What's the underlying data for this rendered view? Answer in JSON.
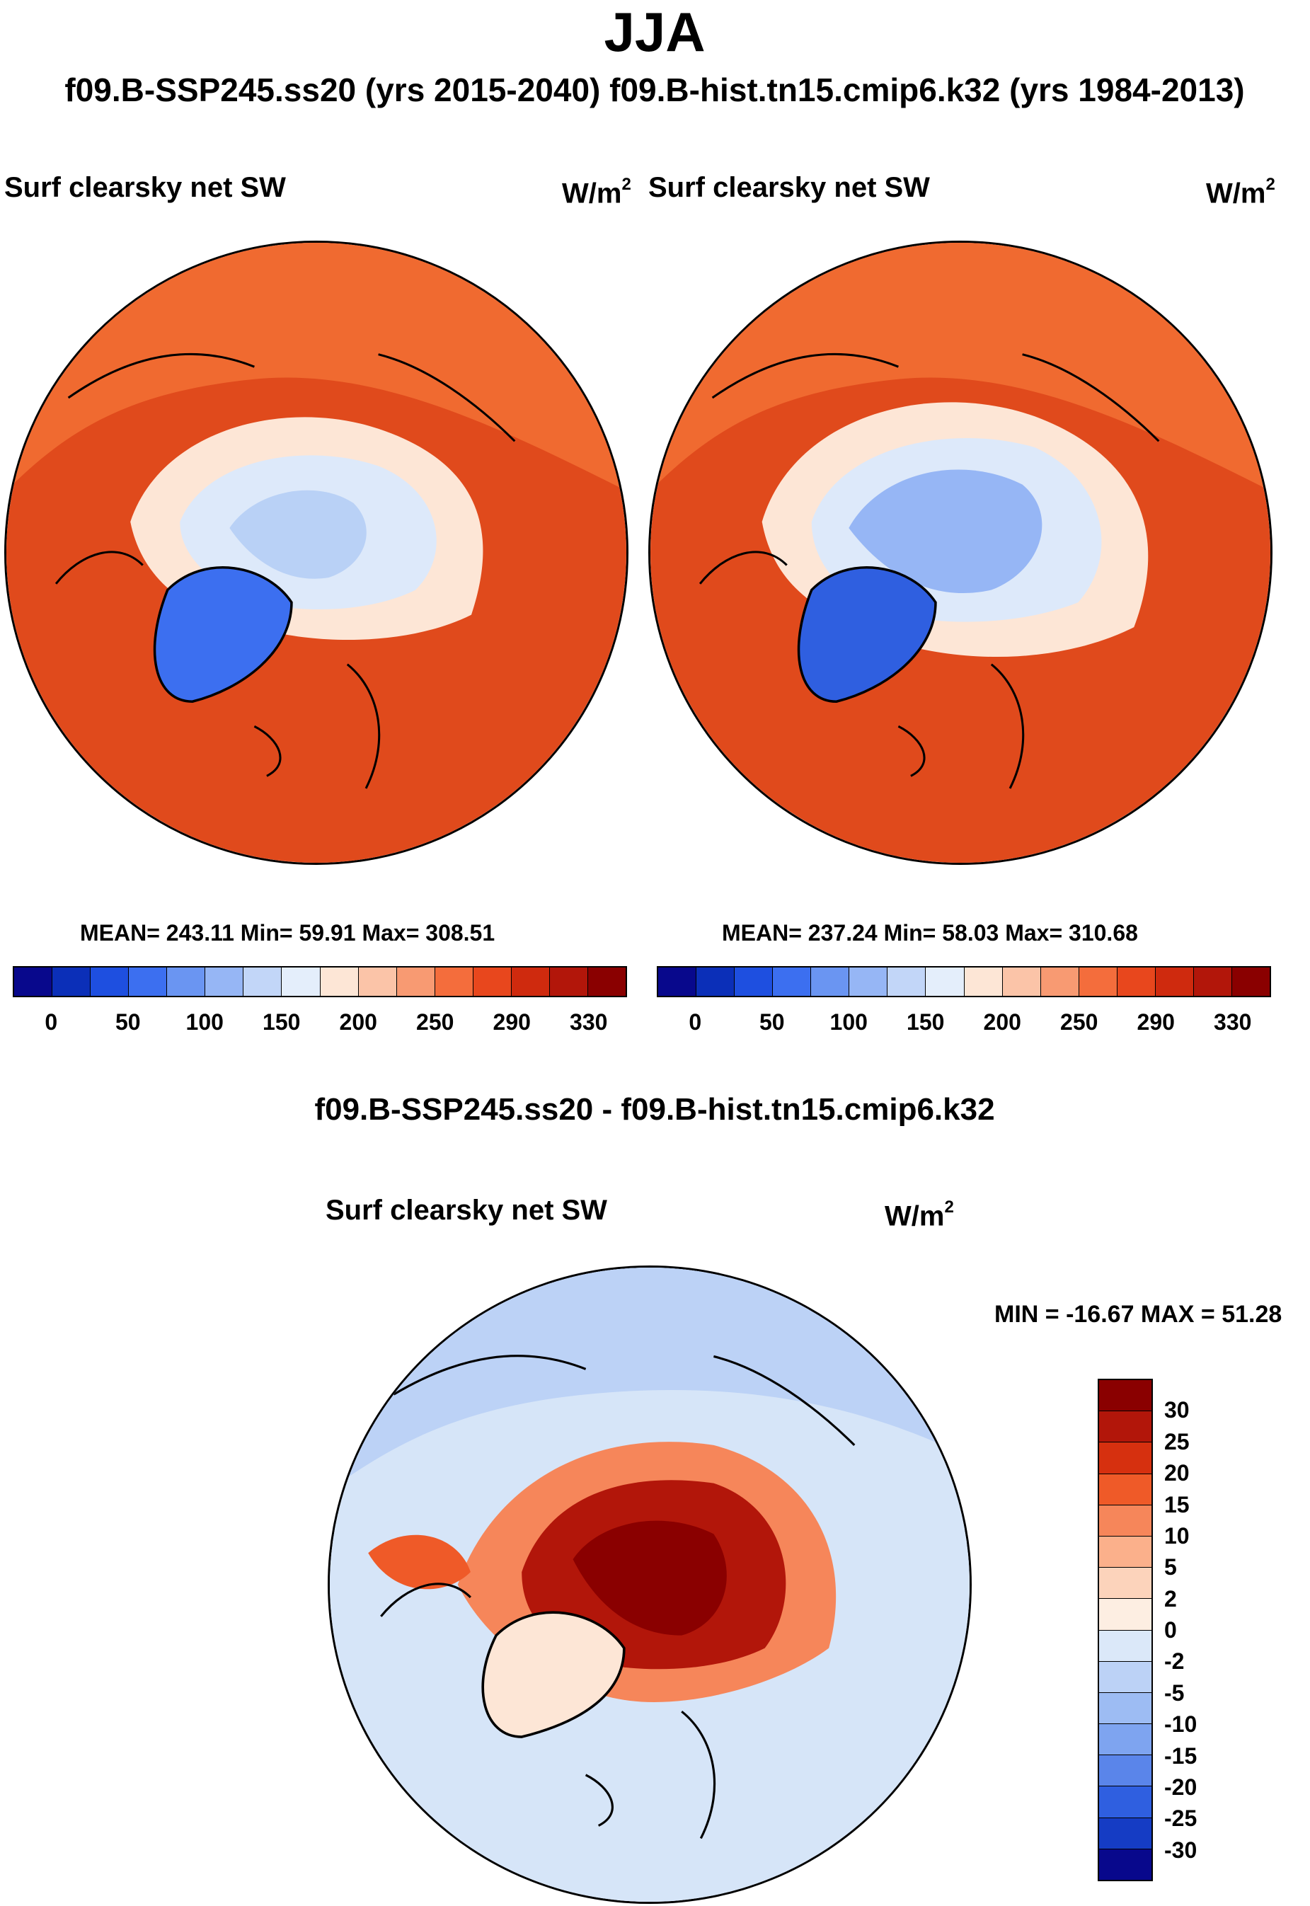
{
  "figure": {
    "season": "JJA",
    "subtitle": "f09.B-SSP245.ss20 (yrs 2015-2040)  f09.B-hist.tn15.cmip6.k32 (yrs 1984-2013)",
    "diff_title": "f09.B-SSP245.ss20 - f09.B-hist.tn15.cmip6.k32"
  },
  "panels": {
    "left": {
      "variable": "Surf clearsky net SW",
      "units_base": "W/m",
      "units_exp": "2",
      "mean_label": "MEAN=",
      "mean": "243.11",
      "min_label": "Min=",
      "min": "59.91",
      "max_label": "Max=",
      "max": "308.51"
    },
    "right": {
      "variable": "Surf clearsky net SW",
      "units_base": "W/m",
      "units_exp": "2",
      "mean_label": "MEAN=",
      "mean": "237.24",
      "min_label": "Min=",
      "min": "58.03",
      "max_label": "Max=",
      "max": "310.68"
    },
    "diff": {
      "variable": "Surf clearsky net SW",
      "units_base": "W/m",
      "units_exp": "2",
      "minmax": "MIN = -16.67 MAX =  51.28"
    }
  },
  "colorbars": {
    "main": {
      "ticks": [
        "0",
        "50",
        "100",
        "150",
        "200",
        "250",
        "290",
        "330"
      ],
      "colors": [
        "#08088c",
        "#0b2fb8",
        "#1e4fe0",
        "#3c6ff0",
        "#6a95f2",
        "#96b6f5",
        "#c2d6f8",
        "#e4eefb",
        "#fde6d6",
        "#fbc4a8",
        "#f89a72",
        "#f46d3c",
        "#e8471d",
        "#cf2a0e",
        "#b2160a",
        "#8a0000"
      ]
    },
    "diff": {
      "ticks": [
        "30",
        "25",
        "20",
        "15",
        "10",
        "5",
        "2",
        "0",
        "-2",
        "-5",
        "-10",
        "-15",
        "-20",
        "-25",
        "-30"
      ],
      "colors": [
        "#8a0000",
        "#b2160a",
        "#d6300f",
        "#ef5a28",
        "#f6865a",
        "#fbb08b",
        "#fcd3bb",
        "#fdeee2",
        "#dbe8f9",
        "#bcd2f6",
        "#9dbcf3",
        "#7ea4f0",
        "#5a85ea",
        "#2f5fe0",
        "#153cc4",
        "#08088c"
      ]
    }
  },
  "map_colors": {
    "ocean_warm": "#e04a1c",
    "ocean_warm2": "#f06a30",
    "ice_pale": "#dde9fa",
    "ice_mid": "#b9d1f6",
    "greenland": "#3c6ff0",
    "diff_bg": "#d6e5f8",
    "diff_hot": "#8a0000",
    "diff_warm": "#e04a1c"
  }
}
